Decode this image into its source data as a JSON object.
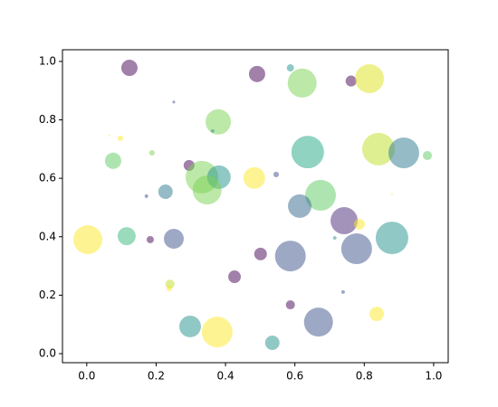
{
  "chart_data": {
    "type": "scatter",
    "x": [
      0.123,
      0.491,
      0.587,
      0.621,
      0.762,
      0.815,
      0.251,
      0.379,
      0.363,
      0.065,
      0.097,
      0.188,
      0.076,
      0.295,
      0.637,
      0.841,
      0.914,
      0.982,
      0.332,
      0.381,
      0.347,
      0.483,
      0.546,
      0.172,
      0.227,
      0.674,
      0.614,
      0.88,
      0.742,
      0.786,
      0.003,
      0.115,
      0.183,
      0.251,
      0.501,
      0.587,
      0.715,
      0.778,
      0.88,
      0.24,
      0.238,
      0.426,
      0.739,
      0.587,
      0.668,
      0.836,
      0.298,
      0.376,
      0.535
    ],
    "values": [
      0.978,
      0.957,
      0.978,
      0.926,
      0.933,
      0.941,
      0.861,
      0.793,
      0.762,
      0.746,
      0.737,
      0.687,
      0.66,
      0.644,
      0.69,
      0.7,
      0.687,
      0.678,
      0.604,
      0.604,
      0.56,
      0.601,
      0.613,
      0.539,
      0.554,
      0.542,
      0.505,
      0.545,
      0.455,
      0.443,
      0.39,
      0.402,
      0.39,
      0.393,
      0.341,
      0.334,
      0.396,
      0.359,
      0.396,
      0.238,
      0.223,
      0.263,
      0.211,
      0.167,
      0.108,
      0.136,
      0.093,
      0.074,
      0.037
    ],
    "sizes": [
      168,
      168,
      33,
      530,
      75,
      530,
      5,
      406,
      8,
      2,
      19,
      19,
      168,
      75,
      671,
      671,
      598,
      52,
      671,
      350,
      530,
      298,
      19,
      8,
      132,
      598,
      350,
      2,
      466,
      75,
      530,
      207,
      33,
      250,
      101,
      598,
      8,
      598,
      671,
      52,
      19,
      101,
      8,
      52,
      530,
      132,
      298,
      598,
      132
    ],
    "colors": [
      "#440154",
      "#440154",
      "#21918c",
      "#7ad151",
      "#440154",
      "#dde318",
      "#3b528b",
      "#7ad151",
      "#21918c",
      "#fde725",
      "#fde725",
      "#7ad151",
      "#5ec962",
      "#440154",
      "#22a884",
      "#bddf26",
      "#2a788e",
      "#5ec962",
      "#7ad151",
      "#21918c",
      "#7ad151",
      "#fde725",
      "#3b528b",
      "#3b528b",
      "#2a788e",
      "#5ec962",
      "#31688e",
      "#fde725",
      "#482878",
      "#fde725",
      "#fde725",
      "#35b779",
      "#440154",
      "#3b528b",
      "#440154",
      "#3b528b",
      "#21918c",
      "#3b528b",
      "#21918c",
      "#bddf26",
      "#fde725",
      "#440154",
      "#3b528b",
      "#440154",
      "#3b528b",
      "#fde725",
      "#21918c",
      "#fde725",
      "#21918c"
    ],
    "alpha": 0.5,
    "xlim": [
      -0.07,
      1.042
    ],
    "ylim": [
      -0.031,
      1.04
    ],
    "xticks": [
      {
        "value": 0,
        "label": "0.0"
      },
      {
        "value": 0.2,
        "label": "0.2"
      },
      {
        "value": 0.4,
        "label": "0.4"
      },
      {
        "value": 0.6,
        "label": "0.6"
      },
      {
        "value": 0.8,
        "label": "0.8"
      },
      {
        "value": 1,
        "label": "1.0"
      }
    ],
    "yticks": [
      {
        "value": 0,
        "label": "0.0"
      },
      {
        "value": 0.2,
        "label": "0.2"
      },
      {
        "value": 0.4,
        "label": "0.4"
      },
      {
        "value": 0.6,
        "label": "0.6"
      },
      {
        "value": 0.8,
        "label": "0.8"
      },
      {
        "value": 1,
        "label": "1.0"
      }
    ]
  }
}
